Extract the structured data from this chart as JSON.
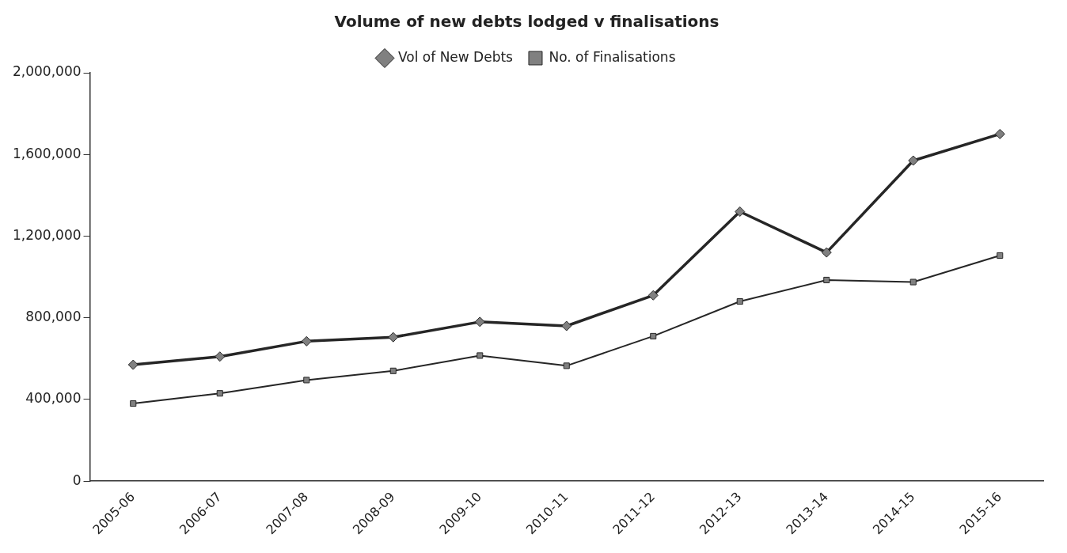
{
  "chart_data": {
    "type": "line",
    "title": "Volume of new debts lodged v finalisations",
    "categories": [
      "2005-06",
      "2006-07",
      "2007-08",
      "2008-09",
      "2009-10",
      "2010-11",
      "2011-12",
      "2012-13",
      "2013-14",
      "2014-15",
      "2015-16"
    ],
    "series": [
      {
        "name": "Vol of New Debts",
        "color": "#262626",
        "marker": "diamond",
        "values": [
          570000,
          610000,
          685000,
          705000,
          780000,
          760000,
          910000,
          1320000,
          1120000,
          1570000,
          1700000
        ]
      },
      {
        "name": "No. of Finalisations",
        "color": "#262626",
        "marker": "square",
        "values": [
          380000,
          430000,
          495000,
          540000,
          615000,
          565000,
          710000,
          880000,
          985000,
          975000,
          1105000
        ]
      }
    ],
    "ylim": [
      0,
      2000000
    ],
    "yticks": [
      0,
      {
        "value": 400000,
        "label": "400,000"
      },
      {
        "value": 800000,
        "label": "800,000"
      },
      {
        "value": 1200000,
        "label": "1,200,000"
      },
      {
        "value": 1600000,
        "label": "1,600,000"
      },
      {
        "value": 2000000,
        "label": "2,000,000"
      }
    ],
    "grid": false,
    "legend": "top",
    "line_style": "solid"
  }
}
